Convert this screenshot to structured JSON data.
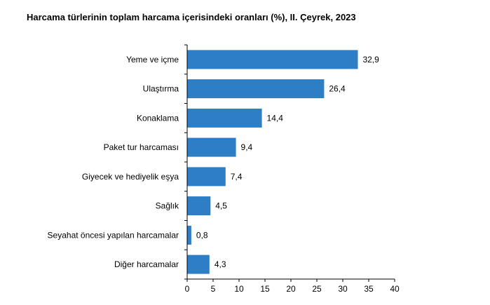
{
  "chart_data": {
    "type": "bar",
    "orientation": "horizontal",
    "title": "Harcama türlerinin toplam harcama içerisindeki oranları (%), II. Çeyrek, 2023",
    "categories": [
      "Yeme ve içme",
      "Ulaştırma",
      "Konaklama",
      "Paket tur harcaması",
      "Giyecek ve hediyelik eşya",
      "Sağlık",
      "Seyahat öncesi yapılan harcamalar",
      "Diğer harcamalar"
    ],
    "values": [
      32.9,
      26.4,
      14.4,
      9.4,
      7.4,
      4.5,
      0.8,
      4.3
    ],
    "data_labels": [
      "32,9",
      "26,4",
      "14,4",
      "9,4",
      "7,4",
      "4,5",
      "0,8",
      "4,3"
    ],
    "xlim": [
      0,
      40
    ],
    "x_ticks": [
      0,
      5,
      10,
      15,
      20,
      25,
      30,
      35,
      40
    ],
    "bar_color": "#2E7EC6",
    "grid": false,
    "legend": "none"
  }
}
